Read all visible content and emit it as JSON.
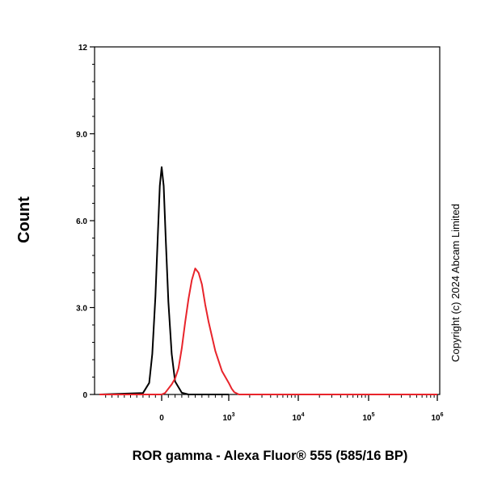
{
  "chart_data": {
    "type": "line",
    "title": "",
    "xlabel": "ROR gamma - Alexa Fluor® 555 (585/16 BP)",
    "ylabel": "Count",
    "ylim": [
      0,
      12
    ],
    "x_scale": "biexponential",
    "y_ticks": [
      {
        "value": 0,
        "label": "0"
      },
      {
        "value": 3,
        "label": "3.0"
      },
      {
        "value": 6,
        "label": "6.0"
      },
      {
        "value": 9,
        "label": "9.0"
      },
      {
        "value": 12,
        "label": "12"
      }
    ],
    "x_ticks": [
      {
        "value": 0,
        "base": "0",
        "exp": ""
      },
      {
        "value": 1000,
        "base": "10",
        "exp": "3"
      },
      {
        "value": 10000,
        "base": "10",
        "exp": "4"
      },
      {
        "value": 100000,
        "base": "10",
        "exp": "5"
      },
      {
        "value": 1000000,
        "base": "10",
        "exp": "6"
      }
    ],
    "grid": false,
    "legend": "none",
    "series": [
      {
        "color": "#000000",
        "x": [
          -1000,
          -300,
          -200,
          -150,
          -100,
          -60,
          -30,
          0,
          30,
          60,
          100,
          150,
          200,
          300,
          400,
          600,
          1000
        ],
        "y": [
          0,
          0.05,
          0.4,
          1.4,
          3.4,
          5.6,
          7.2,
          7.85,
          7.2,
          5.4,
          3.2,
          1.4,
          0.45,
          0.06,
          0,
          0,
          0
        ]
      },
      {
        "color": "#e8242b",
        "x": [
          -1000,
          0,
          50,
          100,
          150,
          200,
          250,
          300,
          350,
          400,
          450,
          500,
          550,
          600,
          650,
          700,
          800,
          900,
          1000,
          1100,
          1200,
          1400,
          10000,
          1000000
        ],
        "y": [
          0,
          0,
          0.05,
          0.2,
          0.35,
          0.55,
          0.9,
          1.6,
          2.5,
          3.3,
          3.95,
          4.35,
          4.2,
          3.8,
          3.1,
          2.5,
          1.5,
          0.8,
          0.4,
          0.2,
          0.08,
          0,
          0,
          0
        ]
      }
    ]
  },
  "annotations": {
    "copyright": "Copyright (c) 2024 Abcam Limited"
  }
}
